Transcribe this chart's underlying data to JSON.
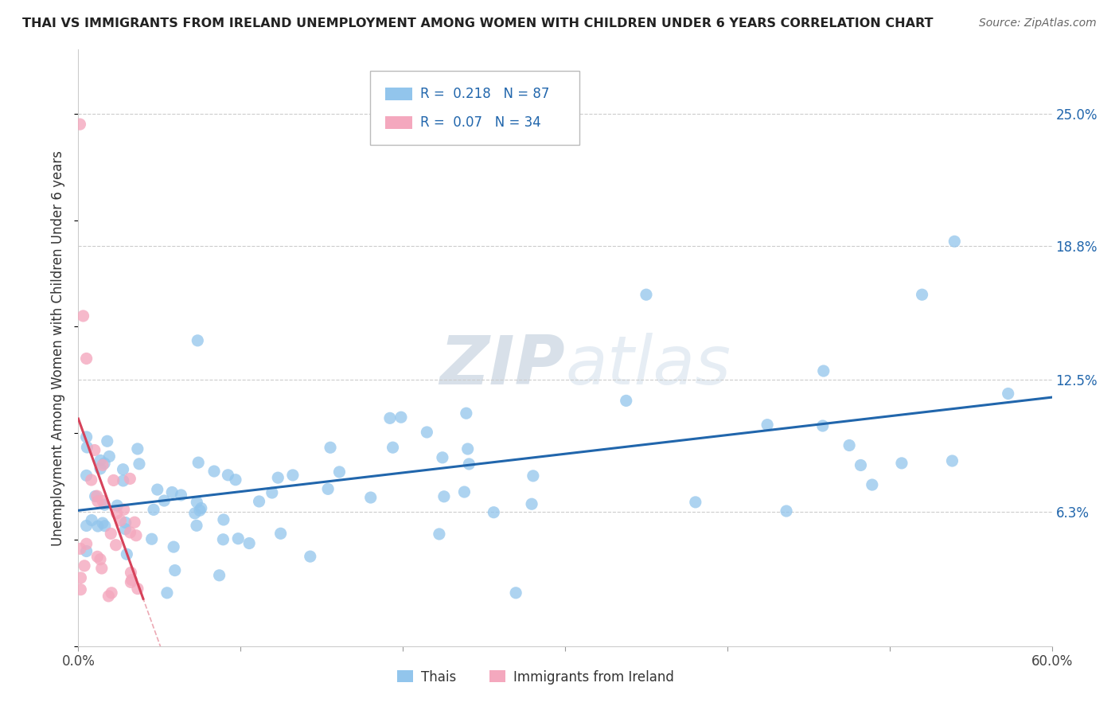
{
  "title": "THAI VS IMMIGRANTS FROM IRELAND UNEMPLOYMENT AMONG WOMEN WITH CHILDREN UNDER 6 YEARS CORRELATION CHART",
  "source": "Source: ZipAtlas.com",
  "ylabel": "Unemployment Among Women with Children Under 6 years",
  "xlim": [
    0.0,
    0.6
  ],
  "ylim": [
    0.0,
    0.28
  ],
  "xtick_vals": [
    0.0,
    0.1,
    0.2,
    0.3,
    0.4,
    0.5,
    0.6
  ],
  "ytick_right_labels": [
    "6.3%",
    "12.5%",
    "18.8%",
    "25.0%"
  ],
  "ytick_right_values": [
    0.063,
    0.125,
    0.188,
    0.25
  ],
  "thai_R": 0.218,
  "thai_N": 87,
  "ireland_R": 0.07,
  "ireland_N": 34,
  "thai_color": "#92C5EC",
  "ireland_color": "#F4A8BE",
  "thai_line_color": "#2166AC",
  "ireland_line_color": "#D6425A",
  "watermark": "ZIPatlas",
  "background_color": "#ffffff",
  "grid_color": "#cccccc"
}
